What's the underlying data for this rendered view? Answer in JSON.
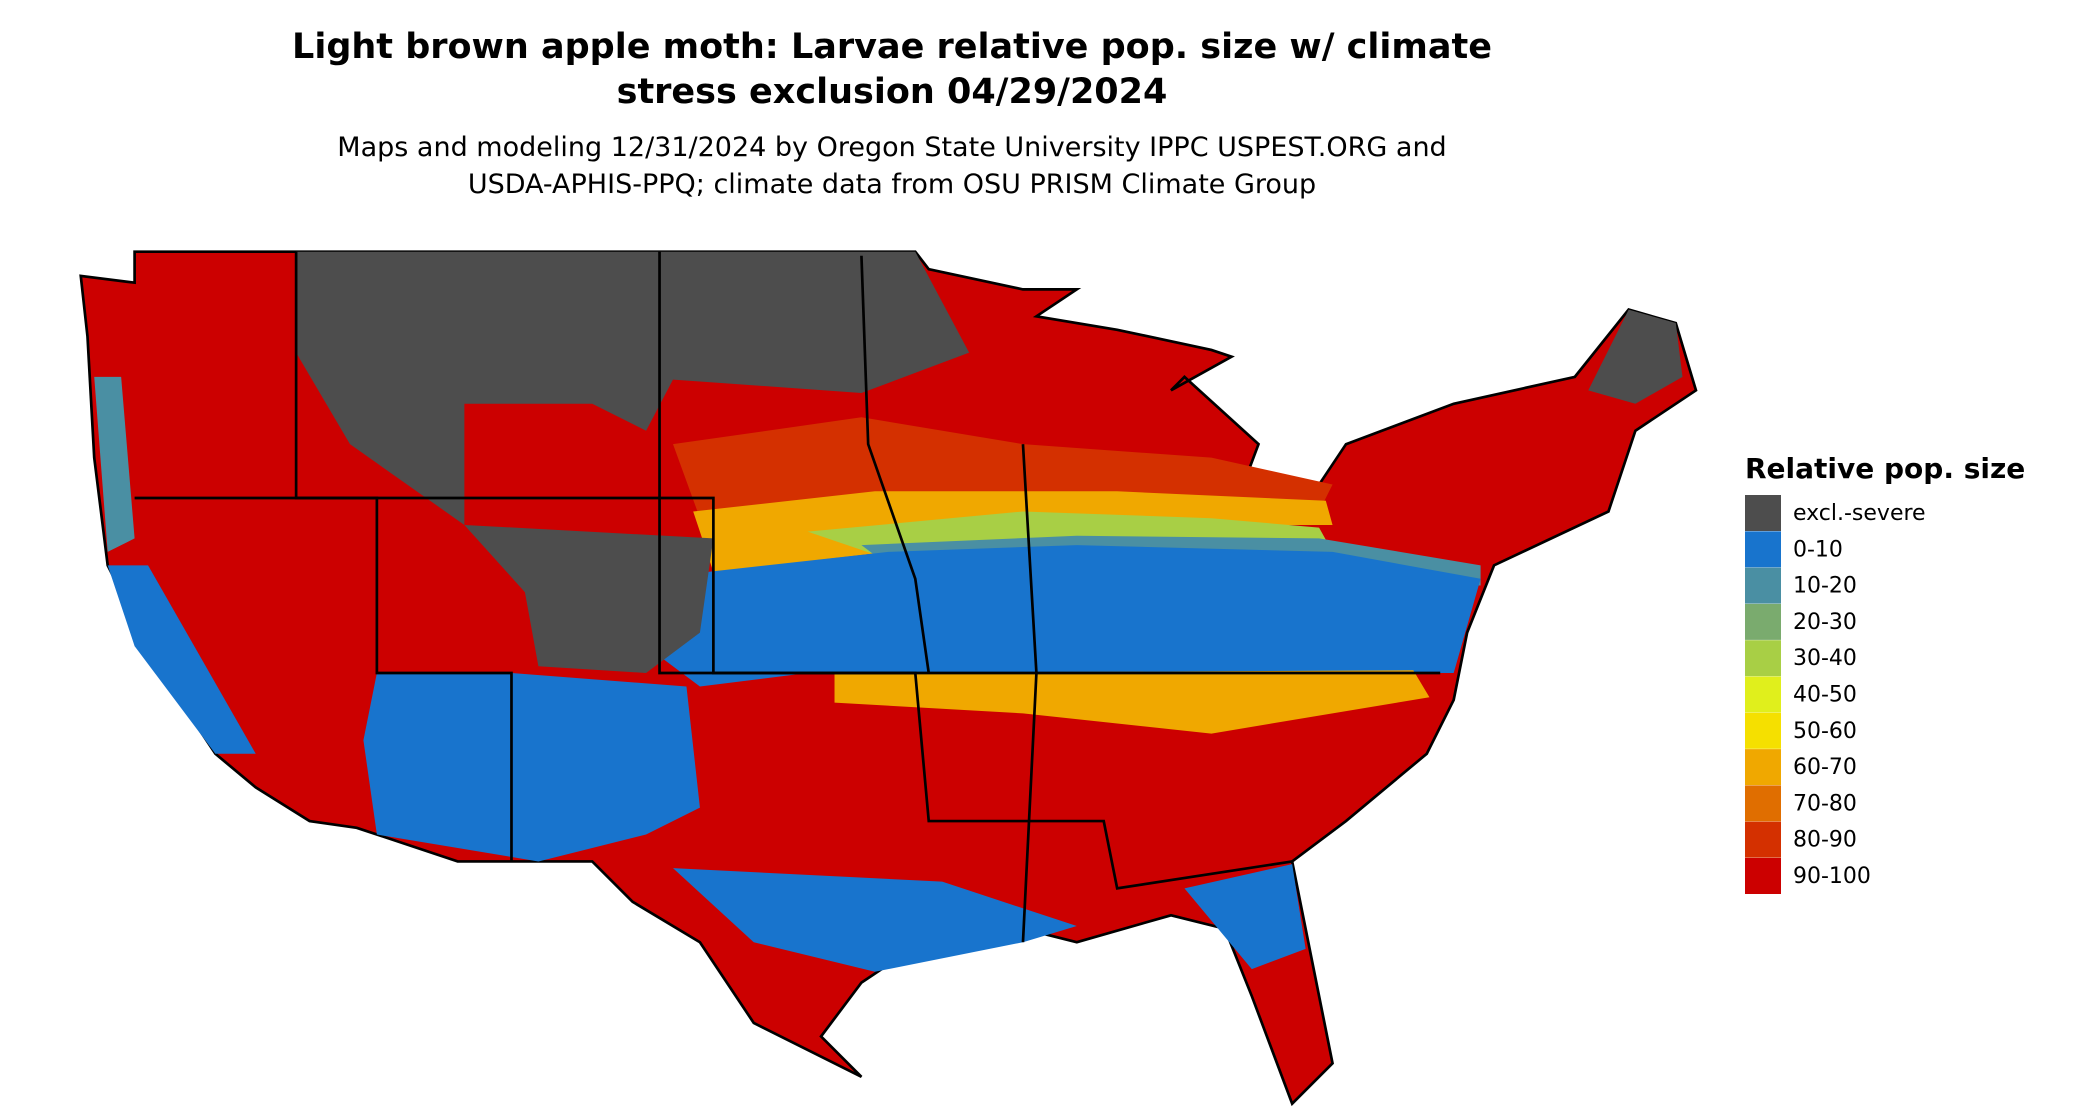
{
  "header": {
    "title": [
      "Light brown apple moth: Larvae relative pop. size w/ climate",
      "stress exclusion 04/29/2024"
    ],
    "subtitle": [
      "Maps and modeling 12/31/2024 by Oregon State University IPPC USPEST.ORG and",
      "USDA-APHIS-PPQ; climate data from OSU PRISM Climate Group"
    ]
  },
  "legend": {
    "title": "Relative pop. size",
    "items": [
      {
        "label": "excl.-severe",
        "color": "#4d4d4d"
      },
      {
        "label": "0-10",
        "color": "#1874cd"
      },
      {
        "label": "10-20",
        "color": "#4a8fa3"
      },
      {
        "label": "20-30",
        "color": "#7aab6e"
      },
      {
        "label": "30-40",
        "color": "#a8cf45"
      },
      {
        "label": "40-50",
        "color": "#e0ef1c"
      },
      {
        "label": "50-60",
        "color": "#f5e000"
      },
      {
        "label": "60-70",
        "color": "#f0a800"
      },
      {
        "label": "70-80",
        "color": "#e06e00"
      },
      {
        "label": "80-90",
        "color": "#d43000"
      },
      {
        "label": "90-100",
        "color": "#cc0000"
      }
    ]
  }
}
